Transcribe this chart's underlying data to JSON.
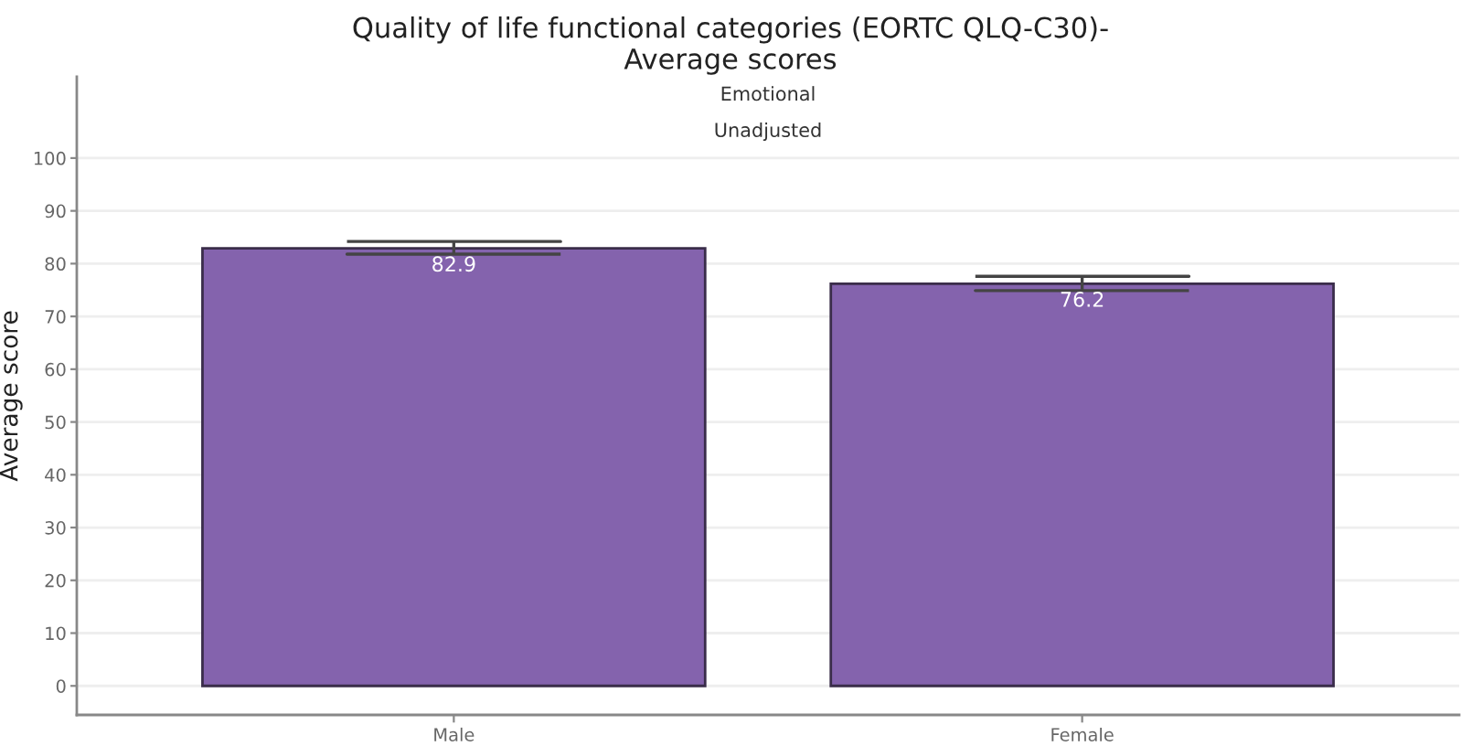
{
  "chart_data": {
    "type": "bar",
    "title": "Quality of life functional categories (EORTC QLQ-C30)-\nAverage scores",
    "subtitle": "Emotional",
    "annotations": [
      "Unadjusted"
    ],
    "ylabel": "Average score",
    "categories": [
      "Male",
      "Female"
    ],
    "values": [
      82.9,
      76.2
    ],
    "color": "#8463ad",
    "errors": [
      [
        81.8,
        84.2
      ],
      [
        74.9,
        77.6
      ]
    ],
    "data_labels": true,
    "ylim": [
      -5.5,
      115.4
    ],
    "yticks": [
      0,
      10,
      20,
      30,
      40,
      50,
      60,
      70,
      80,
      90,
      100
    ],
    "grid": "y",
    "legend": false
  }
}
